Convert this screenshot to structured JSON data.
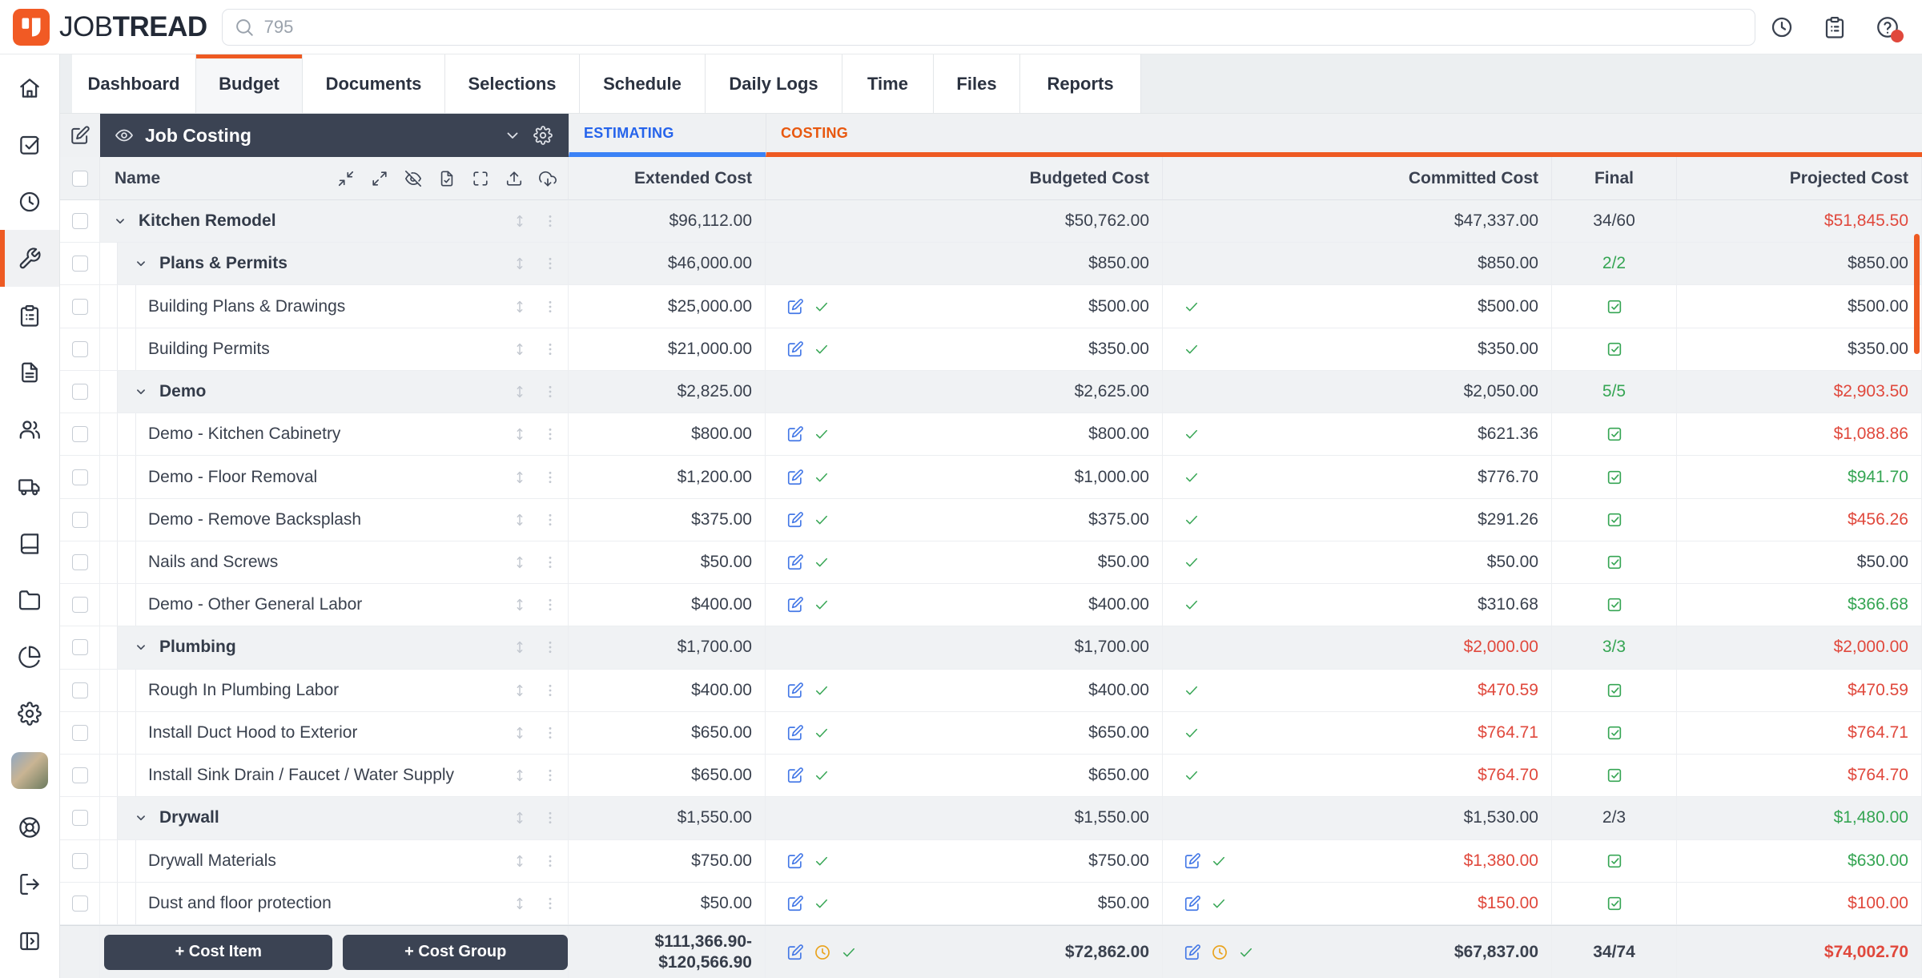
{
  "topbar": {
    "logo_text_regular": "JOB",
    "logo_text_bold": "TREAD",
    "search_placeholder": "795",
    "icons": [
      {
        "name": "recent-activity-icon",
        "icon": "clock"
      },
      {
        "name": "tasks-clipboard-icon",
        "icon": "clipboard"
      },
      {
        "name": "help-icon",
        "icon": "help",
        "badge": true
      }
    ],
    "notification_color": "#e0483c"
  },
  "tabs": {
    "items": [
      "Dashboard",
      "Budget",
      "Documents",
      "Selections",
      "Schedule",
      "Daily Logs",
      "Time",
      "Files",
      "Reports"
    ],
    "active": "Budget"
  },
  "sidebar": {
    "items": [
      {
        "name": "home-icon",
        "icon": "home"
      },
      {
        "name": "tasks-icon",
        "icon": "tasks"
      },
      {
        "name": "time-icon",
        "icon": "clock"
      },
      {
        "name": "job-tools-icon",
        "icon": "tool",
        "active": true
      },
      {
        "name": "daily-logs-icon",
        "icon": "clipboard"
      },
      {
        "name": "documents-icon",
        "icon": "file"
      },
      {
        "name": "people-icon",
        "icon": "users"
      },
      {
        "name": "vehicles-icon",
        "icon": "truck"
      },
      {
        "name": "price-book-icon",
        "icon": "book"
      },
      {
        "name": "files-folder-icon",
        "icon": "folder"
      },
      {
        "name": "reports-pie-icon",
        "icon": "pie"
      },
      {
        "name": "settings-gear-icon",
        "icon": "gear"
      },
      {
        "name": "user-avatar",
        "icon": "avatar"
      },
      {
        "name": "support-icon",
        "icon": "buoy"
      },
      {
        "name": "logout-icon",
        "icon": "logout"
      },
      {
        "name": "collapse-sidebar-icon",
        "icon": "panel"
      }
    ]
  },
  "view": {
    "title": "Job Costing"
  },
  "sections": {
    "estimating": "ESTIMATING",
    "costing": "COSTING"
  },
  "columns": {
    "name": "Name",
    "extended": "Extended Cost",
    "budgeted": "Budgeted Cost",
    "committed": "Committed Cost",
    "final": "Final",
    "projected": "Projected Cost"
  },
  "table_toolbar": [
    {
      "name": "collapse-all-icon",
      "icon": "minimize"
    },
    {
      "name": "expand-all-icon",
      "icon": "maximize"
    },
    {
      "name": "hide-rows-icon",
      "icon": "eyeoff"
    },
    {
      "name": "document-check-icon",
      "icon": "filecheck"
    },
    {
      "name": "fullscreen-icon",
      "icon": "fullscreen"
    },
    {
      "name": "export-icon",
      "icon": "upload"
    },
    {
      "name": "download-icon",
      "icon": "clouddown"
    }
  ],
  "rows": [
    {
      "name": "Kitchen Remodel",
      "level": 1,
      "group": true,
      "extended": "$96,112.00",
      "budgeted": {
        "value": "$50,762.00"
      },
      "committed": {
        "value": "$47,337.00",
        "color": "dark"
      },
      "final": {
        "type": "text",
        "value": "34/60",
        "color": "dark"
      },
      "projected": {
        "value": "$51,845.50",
        "color": "red"
      }
    },
    {
      "name": "Plans & Permits",
      "level": 2,
      "group": true,
      "extended": "$46,000.00",
      "budgeted": {
        "value": "$850.00"
      },
      "committed": {
        "value": "$850.00",
        "color": "dark"
      },
      "final": {
        "type": "text",
        "value": "2/2",
        "color": "green"
      },
      "projected": {
        "value": "$850.00",
        "color": "dark"
      }
    },
    {
      "name": "Building Plans & Drawings",
      "level": 3,
      "group": false,
      "extended": "$25,000.00",
      "budgeted": {
        "value": "$500.00",
        "icons": true
      },
      "committed": {
        "value": "$500.00",
        "color": "dark",
        "icons": "check"
      },
      "final": {
        "type": "check"
      },
      "projected": {
        "value": "$500.00",
        "color": "dark"
      }
    },
    {
      "name": "Building Permits",
      "level": 3,
      "group": false,
      "extended": "$21,000.00",
      "budgeted": {
        "value": "$350.00",
        "icons": true
      },
      "committed": {
        "value": "$350.00",
        "color": "dark",
        "icons": "check"
      },
      "final": {
        "type": "check"
      },
      "projected": {
        "value": "$350.00",
        "color": "dark"
      }
    },
    {
      "name": "Demo",
      "level": 2,
      "group": true,
      "extended": "$2,825.00",
      "budgeted": {
        "value": "$2,625.00"
      },
      "committed": {
        "value": "$2,050.00",
        "color": "dark"
      },
      "final": {
        "type": "text",
        "value": "5/5",
        "color": "green"
      },
      "projected": {
        "value": "$2,903.50",
        "color": "red"
      }
    },
    {
      "name": "Demo - Kitchen Cabinetry",
      "level": 3,
      "group": false,
      "extended": "$800.00",
      "budgeted": {
        "value": "$800.00",
        "icons": true
      },
      "committed": {
        "value": "$621.36",
        "color": "dark",
        "icons": "check"
      },
      "final": {
        "type": "check"
      },
      "projected": {
        "value": "$1,088.86",
        "color": "red"
      }
    },
    {
      "name": "Demo - Floor Removal",
      "level": 3,
      "group": false,
      "extended": "$1,200.00",
      "budgeted": {
        "value": "$1,000.00",
        "icons": true
      },
      "committed": {
        "value": "$776.70",
        "color": "dark",
        "icons": "check"
      },
      "final": {
        "type": "check"
      },
      "projected": {
        "value": "$941.70",
        "color": "green"
      }
    },
    {
      "name": "Demo - Remove Backsplash",
      "level": 3,
      "group": false,
      "extended": "$375.00",
      "budgeted": {
        "value": "$375.00",
        "icons": true
      },
      "committed": {
        "value": "$291.26",
        "color": "dark",
        "icons": "check"
      },
      "final": {
        "type": "check"
      },
      "projected": {
        "value": "$456.26",
        "color": "red"
      }
    },
    {
      "name": "Nails and Screws",
      "level": 3,
      "group": false,
      "extended": "$50.00",
      "budgeted": {
        "value": "$50.00",
        "icons": true
      },
      "committed": {
        "value": "$50.00",
        "color": "dark",
        "icons": "check"
      },
      "final": {
        "type": "check"
      },
      "projected": {
        "value": "$50.00",
        "color": "dark"
      }
    },
    {
      "name": "Demo - Other General Labor",
      "level": 3,
      "group": false,
      "extended": "$400.00",
      "budgeted": {
        "value": "$400.00",
        "icons": true
      },
      "committed": {
        "value": "$310.68",
        "color": "dark",
        "icons": "check"
      },
      "final": {
        "type": "check"
      },
      "projected": {
        "value": "$366.68",
        "color": "green"
      }
    },
    {
      "name": "Plumbing",
      "level": 2,
      "group": true,
      "extended": "$1,700.00",
      "budgeted": {
        "value": "$1,700.00"
      },
      "committed": {
        "value": "$2,000.00",
        "color": "red"
      },
      "final": {
        "type": "text",
        "value": "3/3",
        "color": "green"
      },
      "projected": {
        "value": "$2,000.00",
        "color": "red"
      }
    },
    {
      "name": "Rough In Plumbing Labor",
      "level": 3,
      "group": false,
      "extended": "$400.00",
      "budgeted": {
        "value": "$400.00",
        "icons": true
      },
      "committed": {
        "value": "$470.59",
        "color": "red",
        "icons": "check"
      },
      "final": {
        "type": "check"
      },
      "projected": {
        "value": "$470.59",
        "color": "red"
      }
    },
    {
      "name": "Install Duct Hood to Exterior",
      "level": 3,
      "group": false,
      "extended": "$650.00",
      "budgeted": {
        "value": "$650.00",
        "icons": true
      },
      "committed": {
        "value": "$764.71",
        "color": "red",
        "icons": "check"
      },
      "final": {
        "type": "check"
      },
      "projected": {
        "value": "$764.71",
        "color": "red"
      }
    },
    {
      "name": "Install Sink Drain / Faucet / Water Supply",
      "level": 3,
      "group": false,
      "extended": "$650.00",
      "budgeted": {
        "value": "$650.00",
        "icons": true
      },
      "committed": {
        "value": "$764.70",
        "color": "red",
        "icons": "check"
      },
      "final": {
        "type": "check"
      },
      "projected": {
        "value": "$764.70",
        "color": "red"
      }
    },
    {
      "name": "Drywall",
      "level": 2,
      "group": true,
      "extended": "$1,550.00",
      "budgeted": {
        "value": "$1,550.00"
      },
      "committed": {
        "value": "$1,530.00",
        "color": "dark"
      },
      "final": {
        "type": "text",
        "value": "2/3",
        "color": "dark"
      },
      "projected": {
        "value": "$1,480.00",
        "color": "green"
      }
    },
    {
      "name": "Drywall Materials",
      "level": 3,
      "group": false,
      "extended": "$750.00",
      "budgeted": {
        "value": "$750.00",
        "icons": true
      },
      "committed": {
        "value": "$1,380.00",
        "color": "red",
        "icons": "edit-check"
      },
      "final": {
        "type": "check"
      },
      "projected": {
        "value": "$630.00",
        "color": "green"
      }
    },
    {
      "name": "Dust and floor protection",
      "level": 3,
      "group": false,
      "extended": "$50.00",
      "budgeted": {
        "value": "$50.00",
        "icons": true
      },
      "committed": {
        "value": "$150.00",
        "color": "red",
        "icons": "edit-check"
      },
      "final": {
        "type": "check"
      },
      "projected": {
        "value": "$100.00",
        "color": "red"
      }
    }
  ],
  "footer": {
    "cost_item_button": "+ Cost Item",
    "cost_group_button": "+ Cost Group",
    "extended_total_line1": "$111,366.90-",
    "extended_total_line2": "$120,566.90",
    "budgeted_total": "$72,862.00",
    "committed_total": "$67,837.00",
    "final_total": "34/74",
    "projected_total": "$74,002.70",
    "projected_color": "red"
  },
  "colors": {
    "accent_orange": "#ee5a22",
    "estimating_blue": "#2563eb",
    "positive_green": "#35a553",
    "negative_red": "#e0483c",
    "navy": "#3b4353"
  }
}
